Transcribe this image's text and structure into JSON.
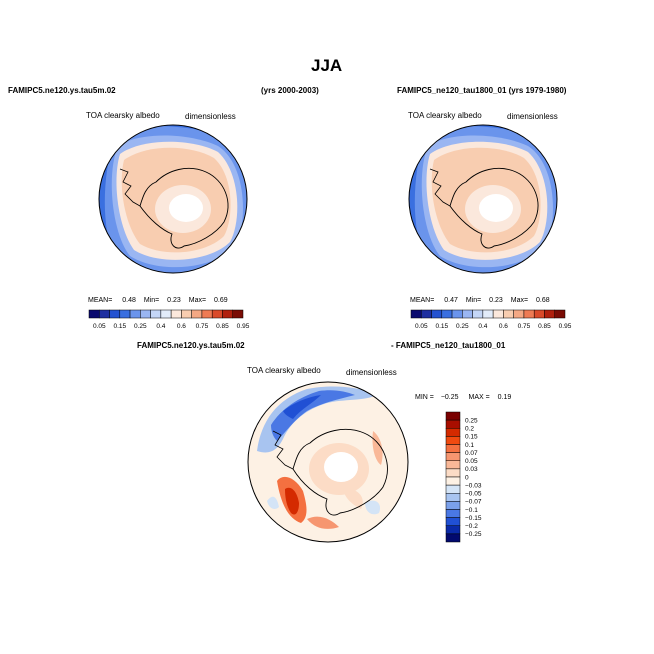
{
  "page": {
    "title": "JJA",
    "left_case": "FAMIPC5.ne120.ys.tau5m.02",
    "left_years": "(yrs 2000-2003)",
    "right_case": "FAMIPC5_ne120_tau1800_01 (yrs 1979-1980)",
    "diff_case_a": "FAMIPC5.ne120.ys.tau5m.02",
    "diff_case_b": "- FAMIPC5_ne120_tau1800_01"
  },
  "chart_data": [
    {
      "type": "heatmap",
      "projection": "south-polar-stereographic",
      "variable": "TOA clearsky albedo",
      "units": "dimensionless",
      "stats_text": {
        "mean_label": "MEAN=",
        "mean": "0.48",
        "min_label": "Min=",
        "min": "0.23",
        "max_label": "Max=",
        "max": "0.69"
      },
      "levels": [
        "0.05",
        "0.15",
        "0.25",
        "0.4",
        "0.6",
        "0.75",
        "0.85",
        "0.95"
      ],
      "colors": [
        "#0a0a6e",
        "#1e2fa0",
        "#2452d0",
        "#3a6fe0",
        "#6a94ec",
        "#9ab6f2",
        "#c4d6f6",
        "#e2ecfa",
        "#fbe8dc",
        "#f8cdb0",
        "#f4a884",
        "#ee7b54",
        "#d94a2a",
        "#b0200e",
        "#7a0c05"
      ]
    },
    {
      "type": "heatmap",
      "projection": "south-polar-stereographic",
      "variable": "TOA clearsky albedo",
      "units": "dimensionless",
      "stats_text": {
        "mean_label": "MEAN=",
        "mean": "0.47",
        "min_label": "Min=",
        "min": "0.23",
        "max_label": "Max=",
        "max": "0.68"
      },
      "levels": [
        "0.05",
        "0.15",
        "0.25",
        "0.4",
        "0.6",
        "0.75",
        "0.85",
        "0.95"
      ],
      "colors": [
        "#0a0a6e",
        "#1e2fa0",
        "#2452d0",
        "#3a6fe0",
        "#6a94ec",
        "#9ab6f2",
        "#c4d6f6",
        "#e2ecfa",
        "#fbe8dc",
        "#f8cdb0",
        "#f4a884",
        "#ee7b54",
        "#d94a2a",
        "#b0200e",
        "#7a0c05"
      ]
    },
    {
      "type": "heatmap",
      "projection": "south-polar-stereographic",
      "variable": "TOA clearsky albedo",
      "units": "dimensionless",
      "stats_text": {
        "min_label": "MIN =",
        "min": "−0.25",
        "max_label": "MAX =",
        "max": "0.19"
      },
      "levels": [
        "0.25",
        "0.2",
        "0.15",
        "0.1",
        "0.07",
        "0.05",
        "0.03",
        "0",
        "−0.03",
        "−0.05",
        "−0.07",
        "−0.1",
        "−0.15",
        "−0.2",
        "−0.25"
      ],
      "colors": [
        "#7a0000",
        "#a80e00",
        "#d42a00",
        "#f04a10",
        "#f47040",
        "#f69670",
        "#f9b898",
        "#fcdcc6",
        "#fdf1e4",
        "#d4e4f6",
        "#a8c4f0",
        "#7aa0ea",
        "#4a78e4",
        "#2050d4",
        "#0a2aa8",
        "#020a6e"
      ]
    }
  ]
}
